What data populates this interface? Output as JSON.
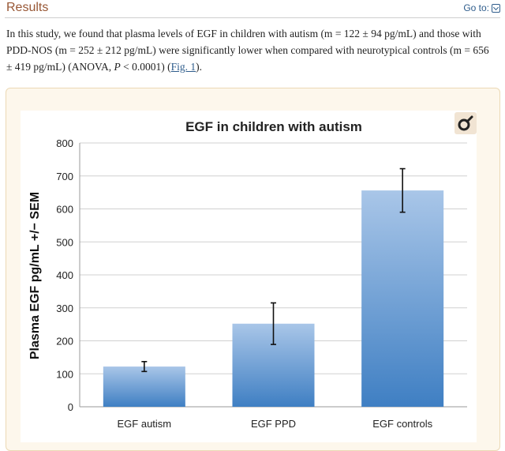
{
  "header": {
    "title": "Results",
    "goto_label": "Go to:"
  },
  "paragraph": {
    "text1": "In this study, we found that plasma levels of EGF in children with autism (m = 122 ± 94 pg/mL) and those with PDD-NOS (m = 252 ± 212 pg/mL) were significantly lower when compared with neurotypical controls (m = 656 ± 419 pg/mL) (ANOVA, ",
    "p_italic": "P",
    "text2": " < 0.0001) (",
    "fig_link": "Fig. 1",
    "text3": ")."
  },
  "chart_data": {
    "type": "bar",
    "title": "EGF in children with autism",
    "xlabel": "",
    "ylabel": "Plasma EGF pg/mL +/− SEM",
    "categories": [
      "EGF autism",
      "EGF PPD",
      "EGF controls"
    ],
    "values": [
      122,
      252,
      656
    ],
    "errors": [
      15,
      63,
      66
    ],
    "ylim": [
      0,
      800
    ],
    "yticks": [
      0,
      100,
      200,
      300,
      400,
      500,
      600,
      700,
      800
    ],
    "grid": true,
    "bar_color_top": "#a9c6e8",
    "bar_color_bottom": "#3f7fc3"
  },
  "colors": {
    "section_title": "#985735",
    "link": "#2f5d8c",
    "panel_bg": "#fdf7ec"
  },
  "icons": {
    "goto": "chevron-down-icon",
    "zoom": "zoom-icon"
  }
}
